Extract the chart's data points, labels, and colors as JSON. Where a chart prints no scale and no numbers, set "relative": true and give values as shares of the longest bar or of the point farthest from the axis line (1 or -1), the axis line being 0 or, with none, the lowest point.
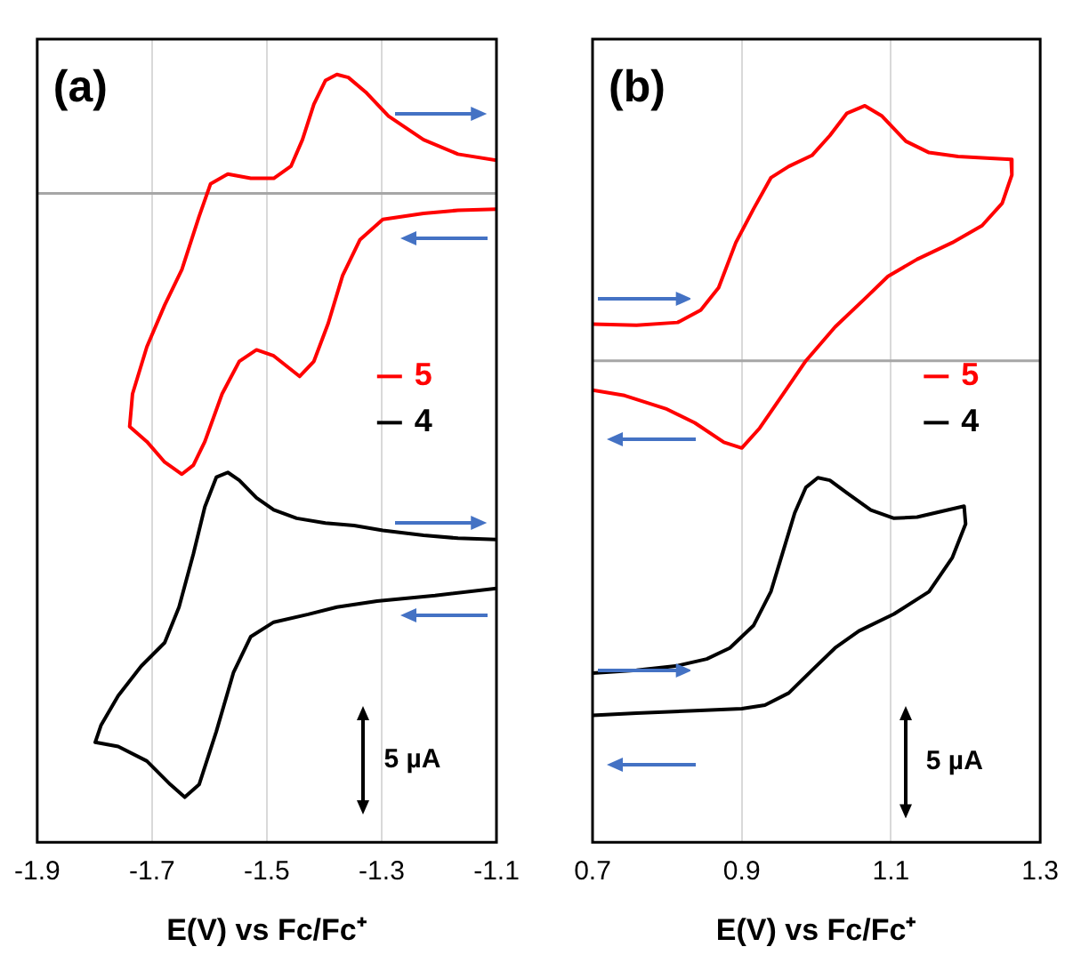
{
  "chart_data": [
    {
      "type": "line",
      "title": "(a)",
      "xlabel": "E(V) vs Fc/Fc⁺",
      "relative": true,
      "xlim": [
        -1.9,
        -1.1
      ],
      "xticks": [
        -1.9,
        -1.7,
        -1.5,
        -1.3,
        -1.1
      ],
      "grid": "x",
      "legend": "right",
      "marker": "none",
      "annotations": [
        "5 µA"
      ],
      "series": [
        {
          "name": "5",
          "color": "#ff0000",
          "x": [
            -1.1,
            -1.167,
            -1.227,
            -1.288,
            -1.328,
            -1.358,
            -1.378,
            -1.398,
            -1.418,
            -1.438,
            -1.458,
            -1.488,
            -1.528,
            -1.568,
            -1.598,
            -1.618,
            -1.648,
            -1.678,
            -1.709,
            -1.734,
            -1.739,
            -1.709,
            -1.678,
            -1.648,
            -1.628,
            -1.608,
            -1.578,
            -1.548,
            -1.518,
            -1.488,
            -1.443,
            -1.418,
            -1.393,
            -1.368,
            -1.338,
            -1.298,
            -1.227,
            -1.167,
            -1.1
          ],
          "values": [
            0.055,
            0.065,
            0.089,
            0.128,
            0.168,
            0.192,
            0.197,
            0.187,
            0.148,
            0.089,
            0.045,
            0.025,
            0.025,
            0.032,
            0.016,
            -0.038,
            -0.126,
            -0.185,
            -0.254,
            -0.332,
            -0.386,
            -0.411,
            -0.445,
            -0.465,
            -0.45,
            -0.411,
            -0.332,
            -0.278,
            -0.259,
            -0.269,
            -0.303,
            -0.278,
            -0.215,
            -0.136,
            -0.077,
            -0.043,
            -0.033,
            -0.028,
            -0.026
          ]
        },
        {
          "name": "4",
          "color": "#000000",
          "x": [
            -1.1,
            -1.167,
            -1.227,
            -1.298,
            -1.348,
            -1.398,
            -1.448,
            -1.488,
            -1.518,
            -1.548,
            -1.568,
            -1.588,
            -1.608,
            -1.628,
            -1.653,
            -1.678,
            -1.719,
            -1.759,
            -1.789,
            -1.799,
            -1.759,
            -1.709,
            -1.668,
            -1.643,
            -1.618,
            -1.588,
            -1.558,
            -1.528,
            -1.488,
            -1.428,
            -1.378,
            -1.308,
            -1.207,
            -1.1
          ],
          "values": [
            -0.573,
            -0.571,
            -0.566,
            -0.558,
            -0.55,
            -0.546,
            -0.538,
            -0.524,
            -0.504,
            -0.475,
            -0.462,
            -0.47,
            -0.519,
            -0.597,
            -0.685,
            -0.744,
            -0.783,
            -0.832,
            -0.881,
            -0.909,
            -0.916,
            -0.94,
            -0.979,
            -1.0,
            -0.979,
            -0.891,
            -0.793,
            -0.734,
            -0.71,
            -0.697,
            -0.685,
            -0.675,
            -0.666,
            -0.654
          ]
        }
      ]
    },
    {
      "type": "line",
      "title": "(b)",
      "xlabel": "E(V) vs Fc/Fc⁺",
      "relative": true,
      "xlim": [
        0.7,
        1.3
      ],
      "xticks": [
        0.7,
        0.9,
        1.1,
        1.3
      ],
      "grid": "x",
      "legend": "right",
      "marker": "none",
      "annotations": [
        "5 µA"
      ],
      "series": [
        {
          "name": "5",
          "color": "#ff0000",
          "x": [
            0.7,
            0.759,
            0.814,
            0.845,
            0.869,
            0.892,
            0.916,
            0.939,
            0.963,
            0.994,
            1.018,
            1.041,
            1.065,
            1.088,
            1.12,
            1.151,
            1.19,
            1.233,
            1.261,
            1.262,
            1.249,
            1.222,
            1.182,
            1.135,
            1.096,
            1.065,
            1.025,
            0.986,
            0.955,
            0.924,
            0.9,
            0.876,
            0.837,
            0.798,
            0.743,
            0.7
          ],
          "values": [
            0.103,
            0.1,
            0.108,
            0.143,
            0.206,
            0.333,
            0.429,
            0.516,
            0.548,
            0.579,
            0.635,
            0.698,
            0.719,
            0.69,
            0.619,
            0.587,
            0.576,
            0.571,
            0.568,
            0.524,
            0.444,
            0.381,
            0.333,
            0.286,
            0.238,
            0.175,
            0.095,
            0.0,
            -0.095,
            -0.19,
            -0.246,
            -0.23,
            -0.175,
            -0.135,
            -0.098,
            -0.083
          ]
        },
        {
          "name": "4",
          "color": "#000000",
          "x": [
            0.7,
            0.759,
            0.814,
            0.853,
            0.884,
            0.916,
            0.939,
            0.955,
            0.971,
            0.986,
            1.002,
            1.018,
            1.041,
            1.073,
            1.104,
            1.135,
            1.167,
            1.198,
            1.2,
            1.182,
            1.151,
            1.104,
            1.057,
            1.025,
            0.994,
            0.963,
            0.931,
            0.9,
            0.837,
            0.759,
            0.7
          ],
          "values": [
            -0.881,
            -0.873,
            -0.86,
            -0.841,
            -0.81,
            -0.746,
            -0.651,
            -0.54,
            -0.429,
            -0.357,
            -0.33,
            -0.337,
            -0.373,
            -0.421,
            -0.444,
            -0.441,
            -0.425,
            -0.41,
            -0.46,
            -0.556,
            -0.651,
            -0.714,
            -0.762,
            -0.81,
            -0.873,
            -0.937,
            -0.971,
            -0.981,
            -0.987,
            -0.994,
            -1.0
          ]
        }
      ]
    }
  ]
}
